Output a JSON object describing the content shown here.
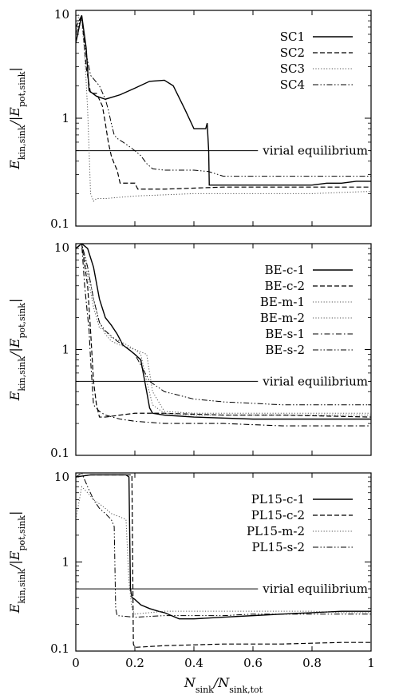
{
  "chart_data": [
    {
      "type": "line",
      "panel": "top",
      "ylabel": "E_kin,sink/|E_pot,sink|",
      "xlim": [
        0,
        1
      ],
      "ylim": [
        0.1,
        10
      ],
      "yscale": "log",
      "xticks": [
        "0",
        "0.2",
        "0.4",
        "0.6",
        "0.8",
        "1"
      ],
      "yticks": [
        "0.1",
        "1",
        "10"
      ],
      "legend_position": "top-right",
      "annotations": [
        {
          "text": "virial equilibrium",
          "y": 0.5
        }
      ],
      "series": [
        {
          "name": "SC1",
          "style": "solid",
          "x": [
            0.0,
            0.02,
            0.035,
            0.045,
            0.07,
            0.1,
            0.15,
            0.2,
            0.25,
            0.3,
            0.33,
            0.37,
            0.4,
            0.44,
            0.445,
            0.45,
            0.452,
            0.5,
            0.6,
            0.7,
            0.8,
            0.85,
            0.9,
            0.95,
            1.0
          ],
          "y": [
            5.0,
            9.0,
            4.5,
            1.8,
            1.6,
            1.5,
            1.65,
            1.9,
            2.2,
            2.25,
            2.0,
            1.2,
            0.8,
            0.8,
            0.9,
            0.5,
            0.24,
            0.24,
            0.24,
            0.24,
            0.24,
            0.25,
            0.25,
            0.26,
            0.26
          ]
        },
        {
          "name": "SC2",
          "style": "dashed",
          "x": [
            0.0,
            0.02,
            0.035,
            0.05,
            0.07,
            0.09,
            0.1,
            0.11,
            0.12,
            0.13,
            0.14,
            0.15,
            0.2,
            0.21,
            0.3,
            0.5,
            0.7,
            0.9,
            1.0
          ],
          "y": [
            7.0,
            9.0,
            3.0,
            1.7,
            1.7,
            1.3,
            0.9,
            0.6,
            0.45,
            0.38,
            0.33,
            0.25,
            0.25,
            0.22,
            0.22,
            0.23,
            0.23,
            0.23,
            0.23
          ]
        },
        {
          "name": "SC3",
          "style": "dotted",
          "x": [
            0.0,
            0.01,
            0.02,
            0.03,
            0.04,
            0.045,
            0.05,
            0.06,
            0.07,
            0.1,
            0.2,
            0.4,
            0.6,
            0.8,
            1.0
          ],
          "y": [
            6.0,
            9.0,
            8.0,
            4.0,
            1.2,
            0.5,
            0.2,
            0.17,
            0.18,
            0.18,
            0.19,
            0.2,
            0.2,
            0.2,
            0.21
          ]
        },
        {
          "name": "SC4",
          "style": "dashdotdot",
          "x": [
            0.0,
            0.02,
            0.035,
            0.05,
            0.08,
            0.1,
            0.11,
            0.12,
            0.13,
            0.14,
            0.16,
            0.18,
            0.2,
            0.22,
            0.24,
            0.26,
            0.3,
            0.4,
            0.45,
            0.5,
            0.6,
            0.7,
            0.8,
            0.9,
            1.0
          ],
          "y": [
            6.0,
            9.0,
            4.0,
            2.5,
            2.0,
            1.5,
            1.2,
            0.9,
            0.7,
            0.65,
            0.6,
            0.55,
            0.5,
            0.45,
            0.38,
            0.34,
            0.33,
            0.33,
            0.32,
            0.29,
            0.29,
            0.29,
            0.29,
            0.29,
            0.29
          ]
        }
      ]
    },
    {
      "type": "line",
      "panel": "middle",
      "ylabel": "E_kin,sink/|E_pot,sink|",
      "xlim": [
        0,
        1
      ],
      "ylim": [
        0.1,
        10
      ],
      "yscale": "log",
      "xticks": [
        "0",
        "0.2",
        "0.4",
        "0.6",
        "0.8",
        "1"
      ],
      "yticks": [
        "0.1",
        "1",
        "10"
      ],
      "legend_position": "top-right",
      "annotations": [
        {
          "text": "virial equilibrium",
          "y": 0.5
        }
      ],
      "series": [
        {
          "name": "BE-c-1",
          "style": "solid",
          "x": [
            0.0,
            0.02,
            0.04,
            0.06,
            0.08,
            0.1,
            0.12,
            0.14,
            0.16,
            0.18,
            0.2,
            0.22,
            0.24,
            0.25,
            0.26,
            0.3,
            0.4,
            0.6,
            0.8,
            1.0
          ],
          "y": [
            9.0,
            10.0,
            9.0,
            6.0,
            3.0,
            2.0,
            1.7,
            1.4,
            1.1,
            1.0,
            0.9,
            0.8,
            0.4,
            0.28,
            0.25,
            0.24,
            0.23,
            0.22,
            0.22,
            0.22
          ]
        },
        {
          "name": "BE-c-2",
          "style": "dashed",
          "x": [
            0.0,
            0.02,
            0.04,
            0.05,
            0.06,
            0.07,
            0.08,
            0.1,
            0.15,
            0.2,
            0.3,
            0.5,
            0.7,
            1.0
          ],
          "y": [
            9.0,
            10.0,
            4.0,
            1.5,
            0.5,
            0.3,
            0.23,
            0.23,
            0.24,
            0.25,
            0.25,
            0.24,
            0.24,
            0.23
          ]
        },
        {
          "name": "BE-m-1",
          "style": "dotted",
          "x": [
            0.0,
            0.02,
            0.04,
            0.06,
            0.08,
            0.1,
            0.12,
            0.15,
            0.2,
            0.22,
            0.24,
            0.26,
            0.3,
            0.4,
            0.6,
            0.8,
            1.0
          ],
          "y": [
            9.0,
            10.0,
            6.0,
            3.0,
            1.8,
            1.4,
            1.2,
            1.1,
            1.0,
            0.9,
            0.5,
            0.3,
            0.25,
            0.24,
            0.24,
            0.24,
            0.24
          ]
        },
        {
          "name": "BE-m-2",
          "style": "dotted",
          "x": [
            0.0,
            0.02,
            0.04,
            0.06,
            0.08,
            0.1,
            0.12,
            0.15,
            0.2,
            0.24,
            0.26,
            0.3,
            0.4,
            0.6,
            0.8,
            1.0
          ],
          "y": [
            9.0,
            10.0,
            5.0,
            2.5,
            1.6,
            1.5,
            1.3,
            1.2,
            1.0,
            0.9,
            0.4,
            0.26,
            0.25,
            0.25,
            0.25,
            0.25
          ]
        },
        {
          "name": "BE-s-1",
          "style": "dashdot",
          "x": [
            0.0,
            0.02,
            0.03,
            0.045,
            0.05,
            0.06,
            0.08,
            0.1,
            0.15,
            0.2,
            0.3,
            0.5,
            0.7,
            1.0
          ],
          "y": [
            9.0,
            10.0,
            4.0,
            1.5,
            0.8,
            0.3,
            0.26,
            0.24,
            0.22,
            0.21,
            0.2,
            0.2,
            0.19,
            0.19
          ]
        },
        {
          "name": "BE-s-2",
          "style": "dashdotdot",
          "x": [
            0.0,
            0.02,
            0.04,
            0.06,
            0.08,
            0.1,
            0.14,
            0.16,
            0.2,
            0.25,
            0.3,
            0.4,
            0.5,
            0.6,
            0.7,
            0.8,
            0.9,
            1.0
          ],
          "y": [
            9.0,
            10.0,
            6.0,
            3.0,
            1.8,
            1.5,
            1.2,
            1.1,
            0.9,
            0.5,
            0.4,
            0.34,
            0.32,
            0.31,
            0.3,
            0.3,
            0.3,
            0.3
          ]
        }
      ]
    },
    {
      "type": "line",
      "panel": "bottom",
      "ylabel": "E_kin,sink/|E_pot,sink|",
      "xlabel": "N_sink/N_sink,tot",
      "xlim": [
        0,
        1
      ],
      "ylim": [
        0.1,
        10
      ],
      "yscale": "log",
      "xticks": [
        "0",
        "0.2",
        "0.4",
        "0.6",
        "0.8",
        "1"
      ],
      "yticks": [
        "0.1",
        "1",
        "10"
      ],
      "legend_position": "top-right",
      "annotations": [
        {
          "text": "virial equilibrium",
          "y": 0.5
        }
      ],
      "series": [
        {
          "name": "PL15-c-1",
          "style": "solid",
          "x": [
            0.0,
            0.05,
            0.1,
            0.17,
            0.18,
            0.185,
            0.19,
            0.2,
            0.22,
            0.25,
            0.28,
            0.3,
            0.35,
            0.4,
            0.5,
            0.6,
            0.7,
            0.8,
            0.9,
            1.0
          ],
          "y": [
            9.0,
            9.5,
            9.5,
            9.5,
            9.0,
            0.5,
            0.4,
            0.38,
            0.33,
            0.3,
            0.28,
            0.27,
            0.23,
            0.23,
            0.24,
            0.25,
            0.26,
            0.27,
            0.28,
            0.28
          ]
        },
        {
          "name": "PL15-c-2",
          "style": "dashed",
          "x": [
            0.0,
            0.05,
            0.1,
            0.15,
            0.19,
            0.195,
            0.2,
            0.3,
            0.5,
            0.7,
            0.9,
            1.0
          ],
          "y": [
            9.0,
            9.5,
            9.5,
            9.5,
            9.5,
            0.12,
            0.11,
            0.115,
            0.12,
            0.12,
            0.125,
            0.125
          ]
        },
        {
          "name": "PL15-m-2",
          "style": "dotted",
          "x": [
            0.0,
            0.02,
            0.04,
            0.06,
            0.08,
            0.1,
            0.12,
            0.15,
            0.17,
            0.18,
            0.19,
            0.2,
            0.25,
            0.3,
            0.4,
            0.5,
            0.6,
            0.7,
            0.8,
            0.9,
            1.0
          ],
          "y": [
            3.0,
            7.0,
            6.0,
            5.0,
            4.5,
            4.0,
            3.5,
            3.2,
            3.0,
            0.6,
            0.3,
            0.26,
            0.27,
            0.28,
            0.28,
            0.28,
            0.28,
            0.28,
            0.28,
            0.27,
            0.27
          ]
        },
        {
          "name": "PL15-s-2",
          "style": "dashdotdot",
          "x": [
            0.0,
            0.02,
            0.04,
            0.06,
            0.08,
            0.1,
            0.12,
            0.13,
            0.135,
            0.14,
            0.2,
            0.3,
            0.4,
            0.5,
            0.6,
            0.7,
            0.8,
            0.9,
            1.0
          ],
          "y": [
            9.0,
            10.0,
            7.0,
            5.0,
            4.0,
            3.5,
            3.0,
            2.5,
            0.3,
            0.25,
            0.24,
            0.25,
            0.25,
            0.25,
            0.26,
            0.26,
            0.26,
            0.26,
            0.26
          ]
        }
      ]
    }
  ]
}
